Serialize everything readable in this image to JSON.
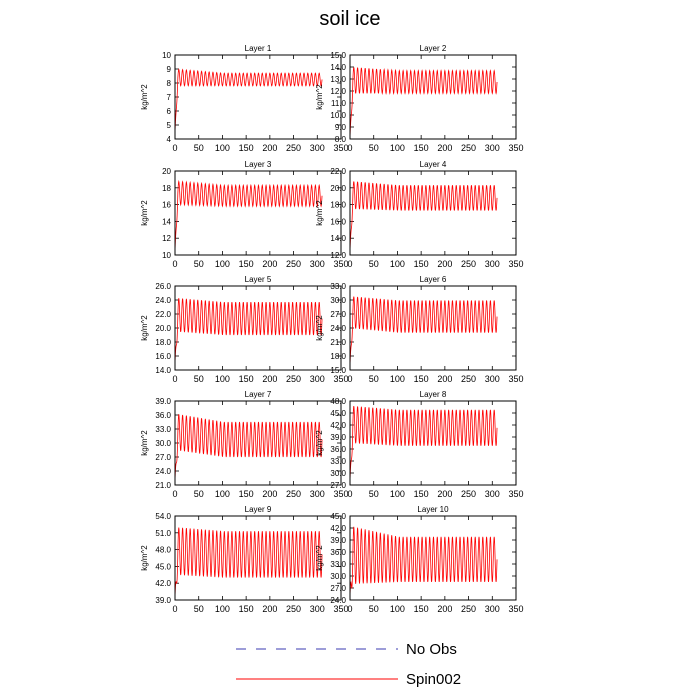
{
  "figure": {
    "title": "soil ice"
  },
  "legend": {
    "entries": [
      {
        "label": "No Obs",
        "color": "#3b3bb0",
        "dash": "dashed"
      },
      {
        "label": "Spin002",
        "color": "#ff0000",
        "dash": "solid"
      }
    ]
  },
  "chart_data": [
    {
      "type": "line",
      "title": "Layer 1",
      "xlabel": "",
      "ylabel": "kg/m^2",
      "xlim": [
        0,
        350
      ],
      "ylim": [
        4,
        10
      ],
      "xticks": [
        0,
        50,
        100,
        150,
        200,
        250,
        300,
        350
      ],
      "yticks": [
        4,
        5,
        6,
        7,
        8,
        9,
        10
      ],
      "ytick_decimals": 0,
      "series": [
        {
          "name": "Spin002",
          "color": "#ff0000",
          "x_range": [
            0,
            310
          ],
          "period": 8,
          "start": 4.5,
          "trough": [
            7.8,
            7.8
          ],
          "peak": [
            9.0,
            8.7
          ]
        }
      ]
    },
    {
      "type": "line",
      "title": "Layer 2",
      "xlabel": "",
      "ylabel": "kg/m^2",
      "xlim": [
        0,
        350
      ],
      "ylim": [
        8,
        15
      ],
      "xticks": [
        0,
        50,
        100,
        150,
        200,
        250,
        300,
        350
      ],
      "yticks": [
        8,
        9,
        10,
        11,
        12,
        13,
        14,
        15
      ],
      "ytick_decimals": 1,
      "series": [
        {
          "name": "Spin002",
          "color": "#ff0000",
          "x_range": [
            0,
            310
          ],
          "period": 8,
          "start": 8.1,
          "trough": [
            11.8,
            11.8
          ],
          "peak": [
            14.0,
            13.7
          ]
        }
      ]
    },
    {
      "type": "line",
      "title": "Layer 3",
      "xlabel": "",
      "ylabel": "kg/m^2",
      "xlim": [
        0,
        350
      ],
      "ylim": [
        10,
        20
      ],
      "xticks": [
        0,
        50,
        100,
        150,
        200,
        250,
        300,
        350
      ],
      "yticks": [
        10,
        12,
        14,
        16,
        18,
        20
      ],
      "ytick_decimals": 0,
      "series": [
        {
          "name": "Spin002",
          "color": "#ff0000",
          "x_range": [
            0,
            310
          ],
          "period": 8,
          "start": 10.5,
          "trough": [
            16.0,
            15.8
          ],
          "peak": [
            18.8,
            18.3
          ]
        }
      ]
    },
    {
      "type": "line",
      "title": "Layer 4",
      "xlabel": "",
      "ylabel": "kg/m^2",
      "xlim": [
        0,
        350
      ],
      "ylim": [
        12,
        22
      ],
      "xticks": [
        0,
        50,
        100,
        150,
        200,
        250,
        300,
        350
      ],
      "yticks": [
        12,
        14,
        16,
        18,
        20,
        22
      ],
      "ytick_decimals": 1,
      "series": [
        {
          "name": "Spin002",
          "color": "#ff0000",
          "x_range": [
            0,
            310
          ],
          "period": 8,
          "start": 12.5,
          "trough": [
            17.5,
            17.3
          ],
          "peak": [
            20.8,
            20.3
          ]
        }
      ]
    },
    {
      "type": "line",
      "title": "Layer 5",
      "xlabel": "",
      "ylabel": "kg/m^2",
      "xlim": [
        0,
        350
      ],
      "ylim": [
        14,
        26
      ],
      "xticks": [
        0,
        50,
        100,
        150,
        200,
        250,
        300,
        350
      ],
      "yticks": [
        14,
        16,
        18,
        20,
        22,
        24,
        26
      ],
      "ytick_decimals": 1,
      "series": [
        {
          "name": "Spin002",
          "color": "#ff0000",
          "x_range": [
            0,
            310
          ],
          "period": 8,
          "start": 15.0,
          "trough": [
            19.5,
            19.0
          ],
          "peak": [
            24.3,
            23.7
          ]
        }
      ]
    },
    {
      "type": "line",
      "title": "Layer 6",
      "xlabel": "",
      "ylabel": "kg/m^2",
      "xlim": [
        0,
        350
      ],
      "ylim": [
        15,
        33
      ],
      "xticks": [
        0,
        50,
        100,
        150,
        200,
        250,
        300,
        350
      ],
      "yticks": [
        15,
        18,
        21,
        24,
        27,
        30,
        33
      ],
      "ytick_decimals": 1,
      "series": [
        {
          "name": "Spin002",
          "color": "#ff0000",
          "x_range": [
            0,
            310
          ],
          "period": 8,
          "start": 16.0,
          "trough": [
            24.0,
            23.0
          ],
          "peak": [
            30.8,
            29.9
          ]
        }
      ]
    },
    {
      "type": "line",
      "title": "Layer 7",
      "xlabel": "",
      "ylabel": "kg/m^2",
      "xlim": [
        0,
        350
      ],
      "ylim": [
        21,
        39
      ],
      "xticks": [
        0,
        50,
        100,
        150,
        200,
        250,
        300,
        350
      ],
      "yticks": [
        21,
        24,
        27,
        30,
        33,
        36,
        39
      ],
      "ytick_decimals": 1,
      "series": [
        {
          "name": "Spin002",
          "color": "#ff0000",
          "x_range": [
            0,
            310
          ],
          "period": 8,
          "start": 22.0,
          "trough": [
            28.5,
            27.0
          ],
          "peak": [
            36.3,
            34.5
          ]
        }
      ]
    },
    {
      "type": "line",
      "title": "Layer 8",
      "xlabel": "",
      "ylabel": "kg/m^2",
      "xlim": [
        0,
        350
      ],
      "ylim": [
        27,
        48
      ],
      "xticks": [
        0,
        50,
        100,
        150,
        200,
        250,
        300,
        350
      ],
      "yticks": [
        27,
        30,
        33,
        36,
        39,
        42,
        45,
        48
      ],
      "ytick_decimals": 1,
      "series": [
        {
          "name": "Spin002",
          "color": "#ff0000",
          "x_range": [
            0,
            310
          ],
          "period": 8,
          "start": 28.0,
          "trough": [
            37.5,
            36.8
          ],
          "peak": [
            46.8,
            45.8
          ]
        }
      ]
    },
    {
      "type": "line",
      "title": "Layer 9",
      "xlabel": "",
      "ylabel": "kg/m^2",
      "xlim": [
        0,
        350
      ],
      "ylim": [
        39,
        54
      ],
      "xticks": [
        0,
        50,
        100,
        150,
        200,
        250,
        300,
        350
      ],
      "yticks": [
        39,
        42,
        45,
        48,
        51,
        54
      ],
      "ytick_decimals": 1,
      "series": [
        {
          "name": "Spin002",
          "color": "#ff0000",
          "x_range": [
            0,
            310
          ],
          "period": 8,
          "start": 39.5,
          "trough": [
            43.5,
            43.0
          ],
          "peak": [
            52.0,
            51.3
          ]
        }
      ]
    },
    {
      "type": "line",
      "title": "Layer 10",
      "xlabel": "",
      "ylabel": "kg/m^2",
      "xlim": [
        0,
        350
      ],
      "ylim": [
        24,
        45
      ],
      "xticks": [
        0,
        50,
        100,
        150,
        200,
        250,
        300,
        350
      ],
      "yticks": [
        24,
        27,
        30,
        33,
        36,
        39,
        42,
        45
      ],
      "ytick_decimals": 1,
      "series": [
        {
          "name": "Spin002",
          "color": "#ff0000",
          "x_range": [
            0,
            310
          ],
          "period": 8,
          "start": 25.0,
          "trough": [
            28.0,
            28.5
          ],
          "peak": [
            42.5,
            39.8
          ]
        }
      ]
    }
  ]
}
